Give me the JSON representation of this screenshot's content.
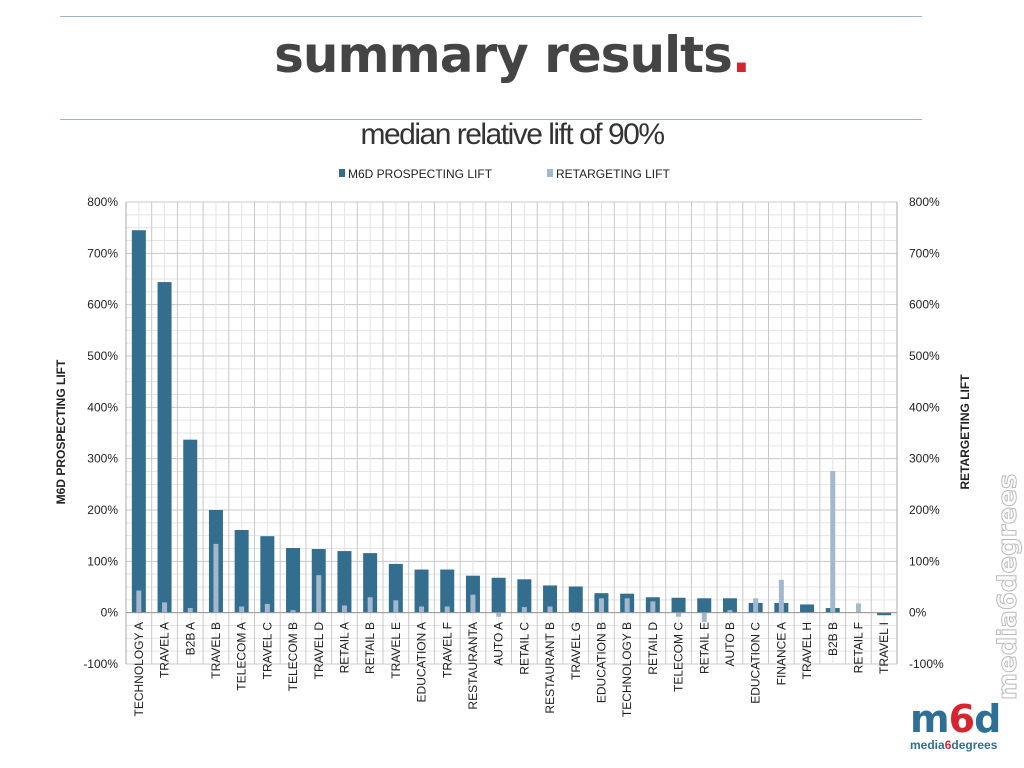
{
  "slide": {
    "title": "summary results",
    "title_dot": ".",
    "subtitle": "median relative lift of 90%"
  },
  "logo": {
    "vertical_text": "media6degrees",
    "mark_prefix": "m",
    "mark_six": "6",
    "mark_suffix": "d",
    "tag_prefix": "media",
    "tag_six": "6",
    "tag_suffix": "degrees"
  },
  "colors": {
    "prospecting": "#336e8e",
    "retargeting": "#a3b8cc",
    "grid": "#d9d9d9",
    "accent_red": "#d8242f"
  },
  "chart_data": {
    "type": "bar",
    "title": "",
    "ylabel": "M6D PROSPECTING LIFT",
    "y2label": "RETARGETING LIFT",
    "ylim": [
      -100,
      800
    ],
    "y2lim": [
      -100,
      800
    ],
    "yticks": [
      "-100%",
      "0%",
      "100%",
      "200%",
      "300%",
      "400%",
      "500%",
      "600%",
      "700%",
      "800%"
    ],
    "grid": true,
    "legend_position": "top",
    "categories": [
      "TECHNOLOGY A",
      "TRAVEL A",
      "B2B A",
      "TRAVEL B",
      "TELECOM A",
      "TRAVEL C",
      "TELECOM B",
      "TRAVEL D",
      "RETAIL A",
      "RETAIL B",
      "TRAVEL E",
      "EDUCATION A",
      "TRAVEL F",
      "RESTAURANTA",
      "AUTO A",
      "RETAIL C",
      "RESTAURANT B",
      "TRAVEL G",
      "EDUCATION B",
      "TECHNOLOGY B",
      "RETAIL D",
      "TELECOM C",
      "RETAIL E",
      "AUTO B",
      "EDUCATION C",
      "FINANCE A",
      "TRAVEL H",
      "B2B B",
      "RETAIL F",
      "TRAVEL I"
    ],
    "series": [
      {
        "name": "M6D PROSPECTING LIFT",
        "values": [
          745,
          644,
          337,
          200,
          161,
          149,
          126,
          124,
          120,
          116,
          95,
          84,
          84,
          72,
          68,
          65,
          53,
          51,
          38,
          37,
          30,
          29,
          28,
          28,
          19,
          19,
          16,
          9,
          null,
          -5
        ]
      },
      {
        "name": "RETARGETING LIFT",
        "values": [
          43,
          20,
          9,
          134,
          12,
          17,
          5,
          73,
          14,
          30,
          24,
          12,
          12,
          35,
          -8,
          11,
          12,
          null,
          28,
          28,
          22,
          -8,
          -18,
          5,
          28,
          64,
          null,
          276,
          18,
          null
        ]
      }
    ]
  }
}
